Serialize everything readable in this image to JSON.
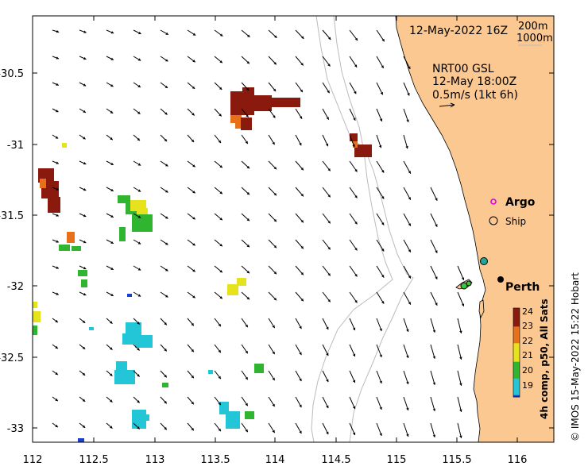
{
  "map": {
    "date_label": "12-May-2022 16Z",
    "isobath_labels": [
      "200m",
      "1000m"
    ],
    "current_label_lines": [
      "NRT00 GSL",
      "12-May 18:00Z",
      "0.5m/s (1kt 6h)"
    ],
    "legend_argo": "Argo",
    "legend_ship": "Ship",
    "city_label": "Perth",
    "credit": "© IMOS 15-May-2022 15:22 Hobart",
    "colorbar_title": "4h comp, p50, All Sats",
    "colorbar_ticks": [
      "24",
      "23",
      "22",
      "21",
      "20",
      "19"
    ],
    "x_ticks": [
      "112",
      "112.5",
      "113",
      "113.5",
      "114",
      "114.5",
      "115",
      "115.5",
      "116"
    ],
    "y_ticks": [
      "-30.5",
      "-31",
      "-31.5",
      "-32",
      "-32.5",
      "-33"
    ],
    "colors": {
      "land": "#fbc892",
      "sst_24": "#8b1a0e",
      "sst_23": "#e8701a",
      "sst_22": "#e6e21e",
      "sst_21": "#2fb52f",
      "sst_20": "#22c6d6",
      "sst_19": "#1d3fd0",
      "argo": "#e000e0",
      "ship": "#ffffff",
      "mooring": "#1fa89a",
      "isobath": "#bbbbbb"
    }
  }
}
